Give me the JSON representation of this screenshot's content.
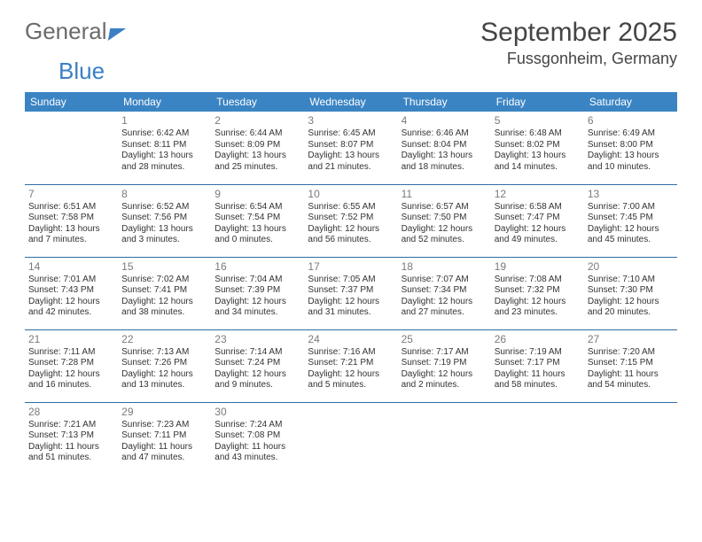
{
  "logo": {
    "text1": "General",
    "text2": "Blue"
  },
  "title": "September 2025",
  "location": "Fussgonheim, Germany",
  "colors": {
    "header_bg": "#3b84c4",
    "row_divider": "#2e6da4",
    "text": "#333333",
    "daynum": "#7a7a7a",
    "title": "#444444"
  },
  "weekdays": [
    "Sunday",
    "Monday",
    "Tuesday",
    "Wednesday",
    "Thursday",
    "Friday",
    "Saturday"
  ],
  "weeks": [
    [
      null,
      {
        "n": "1",
        "sr": "6:42 AM",
        "ss": "8:11 PM",
        "dl": "13 hours and 28 minutes."
      },
      {
        "n": "2",
        "sr": "6:44 AM",
        "ss": "8:09 PM",
        "dl": "13 hours and 25 minutes."
      },
      {
        "n": "3",
        "sr": "6:45 AM",
        "ss": "8:07 PM",
        "dl": "13 hours and 21 minutes."
      },
      {
        "n": "4",
        "sr": "6:46 AM",
        "ss": "8:04 PM",
        "dl": "13 hours and 18 minutes."
      },
      {
        "n": "5",
        "sr": "6:48 AM",
        "ss": "8:02 PM",
        "dl": "13 hours and 14 minutes."
      },
      {
        "n": "6",
        "sr": "6:49 AM",
        "ss": "8:00 PM",
        "dl": "13 hours and 10 minutes."
      }
    ],
    [
      {
        "n": "7",
        "sr": "6:51 AM",
        "ss": "7:58 PM",
        "dl": "13 hours and 7 minutes."
      },
      {
        "n": "8",
        "sr": "6:52 AM",
        "ss": "7:56 PM",
        "dl": "13 hours and 3 minutes."
      },
      {
        "n": "9",
        "sr": "6:54 AM",
        "ss": "7:54 PM",
        "dl": "13 hours and 0 minutes."
      },
      {
        "n": "10",
        "sr": "6:55 AM",
        "ss": "7:52 PM",
        "dl": "12 hours and 56 minutes."
      },
      {
        "n": "11",
        "sr": "6:57 AM",
        "ss": "7:50 PM",
        "dl": "12 hours and 52 minutes."
      },
      {
        "n": "12",
        "sr": "6:58 AM",
        "ss": "7:47 PM",
        "dl": "12 hours and 49 minutes."
      },
      {
        "n": "13",
        "sr": "7:00 AM",
        "ss": "7:45 PM",
        "dl": "12 hours and 45 minutes."
      }
    ],
    [
      {
        "n": "14",
        "sr": "7:01 AM",
        "ss": "7:43 PM",
        "dl": "12 hours and 42 minutes."
      },
      {
        "n": "15",
        "sr": "7:02 AM",
        "ss": "7:41 PM",
        "dl": "12 hours and 38 minutes."
      },
      {
        "n": "16",
        "sr": "7:04 AM",
        "ss": "7:39 PM",
        "dl": "12 hours and 34 minutes."
      },
      {
        "n": "17",
        "sr": "7:05 AM",
        "ss": "7:37 PM",
        "dl": "12 hours and 31 minutes."
      },
      {
        "n": "18",
        "sr": "7:07 AM",
        "ss": "7:34 PM",
        "dl": "12 hours and 27 minutes."
      },
      {
        "n": "19",
        "sr": "7:08 AM",
        "ss": "7:32 PM",
        "dl": "12 hours and 23 minutes."
      },
      {
        "n": "20",
        "sr": "7:10 AM",
        "ss": "7:30 PM",
        "dl": "12 hours and 20 minutes."
      }
    ],
    [
      {
        "n": "21",
        "sr": "7:11 AM",
        "ss": "7:28 PM",
        "dl": "12 hours and 16 minutes."
      },
      {
        "n": "22",
        "sr": "7:13 AM",
        "ss": "7:26 PM",
        "dl": "12 hours and 13 minutes."
      },
      {
        "n": "23",
        "sr": "7:14 AM",
        "ss": "7:24 PM",
        "dl": "12 hours and 9 minutes."
      },
      {
        "n": "24",
        "sr": "7:16 AM",
        "ss": "7:21 PM",
        "dl": "12 hours and 5 minutes."
      },
      {
        "n": "25",
        "sr": "7:17 AM",
        "ss": "7:19 PM",
        "dl": "12 hours and 2 minutes."
      },
      {
        "n": "26",
        "sr": "7:19 AM",
        "ss": "7:17 PM",
        "dl": "11 hours and 58 minutes."
      },
      {
        "n": "27",
        "sr": "7:20 AM",
        "ss": "7:15 PM",
        "dl": "11 hours and 54 minutes."
      }
    ],
    [
      {
        "n": "28",
        "sr": "7:21 AM",
        "ss": "7:13 PM",
        "dl": "11 hours and 51 minutes."
      },
      {
        "n": "29",
        "sr": "7:23 AM",
        "ss": "7:11 PM",
        "dl": "11 hours and 47 minutes."
      },
      {
        "n": "30",
        "sr": "7:24 AM",
        "ss": "7:08 PM",
        "dl": "11 hours and 43 minutes."
      },
      null,
      null,
      null,
      null
    ]
  ],
  "labels": {
    "sunrise": "Sunrise:",
    "sunset": "Sunset:",
    "daylight": "Daylight:"
  }
}
